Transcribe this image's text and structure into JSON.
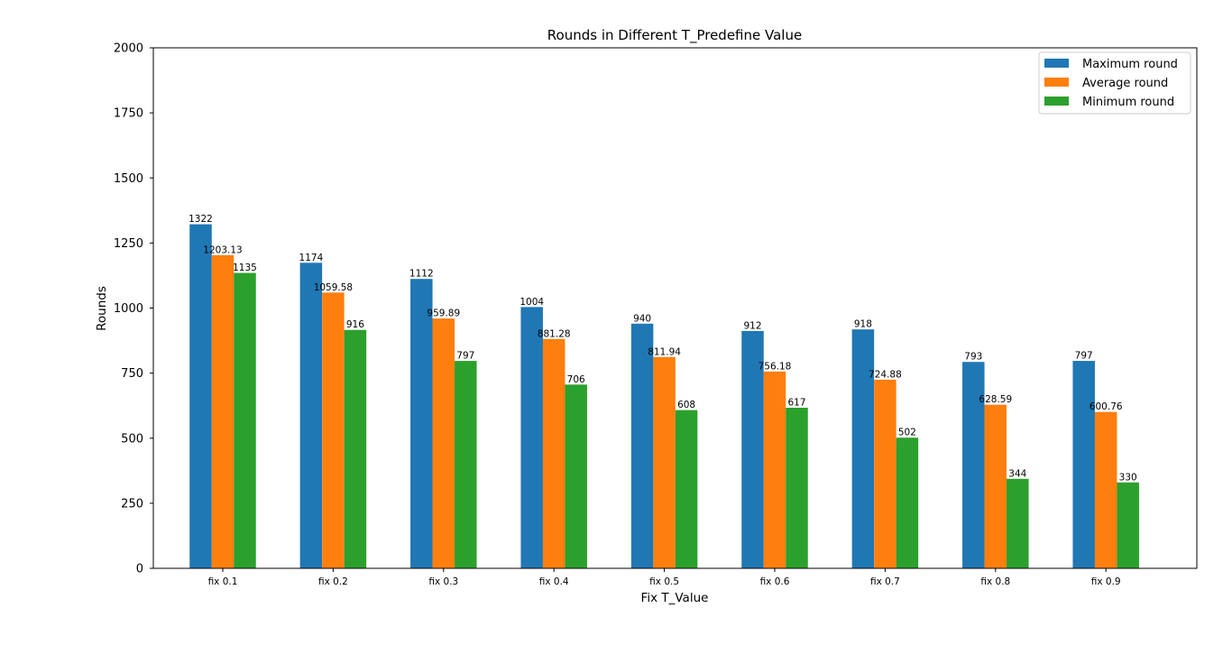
{
  "chart_data": {
    "type": "bar",
    "title": "Rounds in Different T_Predefine Value",
    "xlabel": "Fix T_Value",
    "ylabel": "Rounds",
    "ylim": [
      0,
      2000
    ],
    "yticks": [
      0,
      250,
      500,
      750,
      1000,
      1250,
      1500,
      1750,
      2000
    ],
    "grid": false,
    "legend_position": "top-right",
    "categories": [
      "fix 0.1",
      "fix 0.2",
      "fix 0.3",
      "fix 0.4",
      "fix 0.5",
      "fix 0.6",
      "fix 0.7",
      "fix 0.8",
      "fix 0.9"
    ],
    "series": [
      {
        "name": "Maximum round",
        "color": "#1f77b4",
        "values": [
          1322,
          1174,
          1112,
          1004,
          940,
          912,
          918,
          793,
          797
        ],
        "labels": [
          "1322",
          "1174",
          "1112",
          "1004",
          "940",
          "912",
          "918",
          "793",
          "797"
        ]
      },
      {
        "name": "Average round",
        "color": "#ff7f0e",
        "values": [
          1203.13,
          1059.58,
          959.89,
          881.28,
          811.94,
          756.18,
          724.88,
          628.59,
          600.76
        ],
        "labels": [
          "1203.13",
          "1059.58",
          "959.89",
          "881.28",
          "811.94",
          "756.18",
          "724.88",
          "628.59",
          "600.76"
        ]
      },
      {
        "name": "Minimum round",
        "color": "#2ca02c",
        "values": [
          1135,
          916,
          797,
          706,
          608,
          617,
          502,
          344,
          330
        ],
        "labels": [
          "1135",
          "916",
          "797",
          "706",
          "608",
          "617",
          "502",
          "344",
          "330"
        ]
      }
    ]
  }
}
